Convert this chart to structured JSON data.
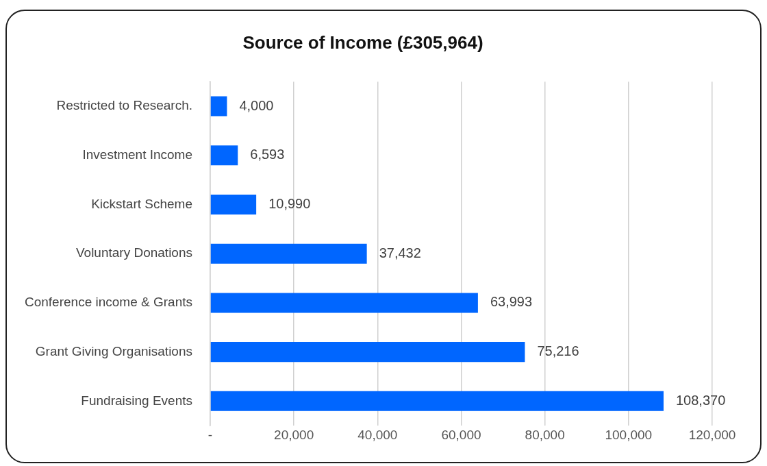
{
  "chart_data": {
    "type": "bar",
    "orientation": "horizontal",
    "title": "Source of Income (£305,964)",
    "categories": [
      "Restricted to Research.",
      "Investment Income",
      "Kickstart Scheme",
      "Voluntary Donations",
      "Conference income & Grants",
      "Grant Giving Organisations",
      "Fundraising Events"
    ],
    "values": [
      4000,
      6593,
      10990,
      37432,
      63993,
      75216,
      108370
    ],
    "color": "#0066ff",
    "xlim": [
      0,
      120000
    ],
    "xticks": [
      {
        "value": 0,
        "label": "-"
      },
      {
        "value": 20000,
        "label": "20,000"
      },
      {
        "value": 40000,
        "label": "40,000"
      },
      {
        "value": 60000,
        "label": "60,000"
      },
      {
        "value": 80000,
        "label": "80,000"
      },
      {
        "value": 100000,
        "label": "100,000"
      },
      {
        "value": 120000,
        "label": "120,000"
      }
    ],
    "value_labels": [
      "4,000",
      "6,593",
      "10,990",
      "37,432",
      "63,993",
      "75,216",
      "108,370"
    ],
    "grid": "x",
    "legend": false
  }
}
